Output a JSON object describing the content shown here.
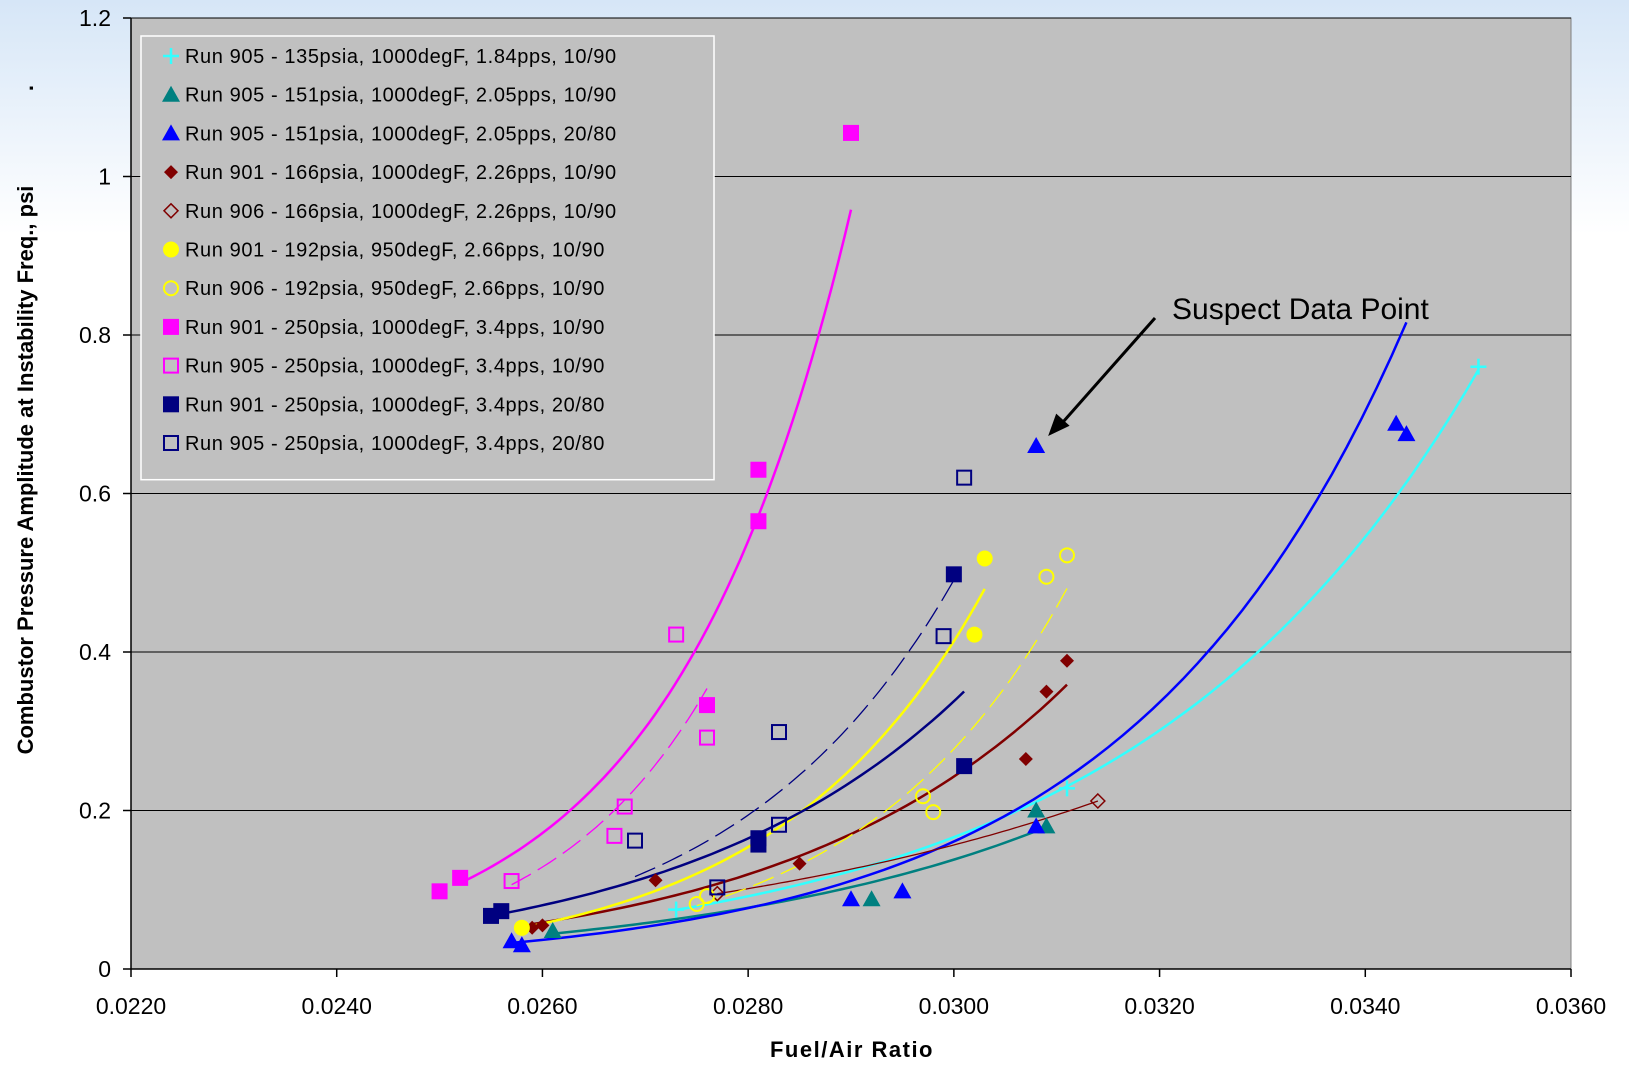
{
  "chart_data": {
    "type": "scatter",
    "xlabel": "Fuel/Air Ratio",
    "ylabel": "Combustor Pressure Amplitude at Instability Freq., psi",
    "ylabel_suffix": ".",
    "xlim": [
      0.022,
      0.036
    ],
    "ylim": [
      0,
      1.2
    ],
    "x_ticks": [
      "0.0220",
      "0.0240",
      "0.0260",
      "0.0280",
      "0.0300",
      "0.0320",
      "0.0340",
      "0.0360"
    ],
    "y_ticks": [
      "0",
      "0.2",
      "0.4",
      "0.6",
      "0.8",
      "1",
      "1.2"
    ],
    "grid": "horizontal",
    "plot_background": "#c0c0c0",
    "legend_position": "top-left",
    "annotations": [
      {
        "text": "Suspect Data Point",
        "target": [
          0.0308,
          0.66
        ]
      }
    ],
    "series": [
      {
        "name": "Run 905 - 135psia, 1000degF, 1.84pps, 10/90",
        "color": "#33ffff",
        "marker": "plus",
        "trend": "solid",
        "trend_x": [
          0.0273,
          0.0351
        ],
        "points": [
          [
            0.0273,
            0.075
          ],
          [
            0.0311,
            0.228
          ],
          [
            0.0351,
            0.76
          ]
        ]
      },
      {
        "name": "Run 905 - 151psia, 1000degF, 2.05pps, 10/90",
        "color": "#008080",
        "marker": "triangle",
        "trend": "solid",
        "trend_x": [
          0.0261,
          0.0309
        ],
        "points": [
          [
            0.0261,
            0.048
          ],
          [
            0.0292,
            0.088
          ],
          [
            0.0308,
            0.2
          ],
          [
            0.0309,
            0.18
          ]
        ]
      },
      {
        "name": "Run 905 - 151psia, 1000degF, 2.05pps, 20/80",
        "color": "#0000ff",
        "marker": "triangle",
        "trend": "solid",
        "trend_x": [
          0.0257,
          0.0344
        ],
        "points": [
          [
            0.0257,
            0.035
          ],
          [
            0.0258,
            0.03
          ],
          [
            0.029,
            0.088
          ],
          [
            0.0295,
            0.098
          ],
          [
            0.0308,
            0.18
          ],
          [
            0.0308,
            0.66
          ],
          [
            0.0343,
            0.688
          ],
          [
            0.0344,
            0.675
          ]
        ]
      },
      {
        "name": "Run 901 - 166psia, 1000degF, 2.26pps, 10/90",
        "color": "#800000",
        "marker": "diamond",
        "trend": "solid",
        "trend_x": [
          0.0259,
          0.0311
        ],
        "points": [
          [
            0.0259,
            0.052
          ],
          [
            0.026,
            0.055
          ],
          [
            0.0271,
            0.112
          ],
          [
            0.0285,
            0.133
          ],
          [
            0.0307,
            0.265
          ],
          [
            0.0309,
            0.35
          ],
          [
            0.0311,
            0.389
          ]
        ]
      },
      {
        "name": "Run 906 - 166psia, 1000degF, 2.26pps, 10/90",
        "color": "#800000",
        "marker": "diamond-open",
        "trend": "thin",
        "trend_x": [
          0.0277,
          0.0314
        ],
        "points": [
          [
            0.0277,
            0.095
          ],
          [
            0.0314,
            0.212
          ]
        ]
      },
      {
        "name": "Run 901 - 192psia, 950degF, 2.66pps, 10/90",
        "color": "#ffff00",
        "marker": "circle",
        "trend": "solid",
        "trend_x": [
          0.0258,
          0.0303
        ],
        "points": [
          [
            0.0258,
            0.052
          ],
          [
            0.0302,
            0.422
          ],
          [
            0.0303,
            0.518
          ]
        ]
      },
      {
        "name": "Run 906 - 192psia, 950degF, 2.66pps, 10/90",
        "color": "#ffff00",
        "marker": "circle-open",
        "trend": "dashed",
        "trend_x": [
          0.0275,
          0.0311
        ],
        "points": [
          [
            0.0275,
            0.082
          ],
          [
            0.0276,
            0.092
          ],
          [
            0.0297,
            0.218
          ],
          [
            0.0298,
            0.198
          ],
          [
            0.0309,
            0.495
          ],
          [
            0.0311,
            0.522
          ]
        ]
      },
      {
        "name": "Run 901 - 250psia, 1000degF, 3.4pps, 10/90",
        "color": "#ff00ff",
        "marker": "square",
        "trend": "solid",
        "trend_x": [
          0.0252,
          0.029
        ],
        "points": [
          [
            0.025,
            0.098
          ],
          [
            0.0252,
            0.115
          ],
          [
            0.0276,
            0.333
          ],
          [
            0.0281,
            0.63
          ],
          [
            0.0281,
            0.565
          ],
          [
            0.029,
            1.055
          ]
        ]
      },
      {
        "name": "Run 905 - 250psia, 1000degF, 3.4pps, 10/90",
        "color": "#ff00ff",
        "marker": "square-open",
        "trend": "dashed",
        "trend_x": [
          0.0257,
          0.0276
        ],
        "points": [
          [
            0.0257,
            0.111
          ],
          [
            0.0267,
            0.168
          ],
          [
            0.0268,
            0.205
          ],
          [
            0.0273,
            0.422
          ],
          [
            0.0276,
            0.292
          ]
        ]
      },
      {
        "name": "Run 901 - 250psia, 1000degF, 3.4pps, 20/80",
        "color": "#000080",
        "marker": "square",
        "trend": "solid",
        "trend_x": [
          0.0255,
          0.0301
        ],
        "points": [
          [
            0.0255,
            0.067
          ],
          [
            0.0256,
            0.073
          ],
          [
            0.0281,
            0.157
          ],
          [
            0.0281,
            0.165
          ],
          [
            0.03,
            0.498
          ],
          [
            0.0301,
            0.256
          ]
        ]
      },
      {
        "name": "Run 905 - 250psia, 1000degF, 3.4pps, 20/80",
        "color": "#000080",
        "marker": "square-open",
        "trend": "dashed",
        "trend_x": [
          0.0269,
          0.03
        ],
        "points": [
          [
            0.0269,
            0.162
          ],
          [
            0.0277,
            0.103
          ],
          [
            0.0283,
            0.182
          ],
          [
            0.0283,
            0.299
          ],
          [
            0.0299,
            0.42
          ],
          [
            0.0301,
            0.62
          ]
        ]
      }
    ]
  }
}
